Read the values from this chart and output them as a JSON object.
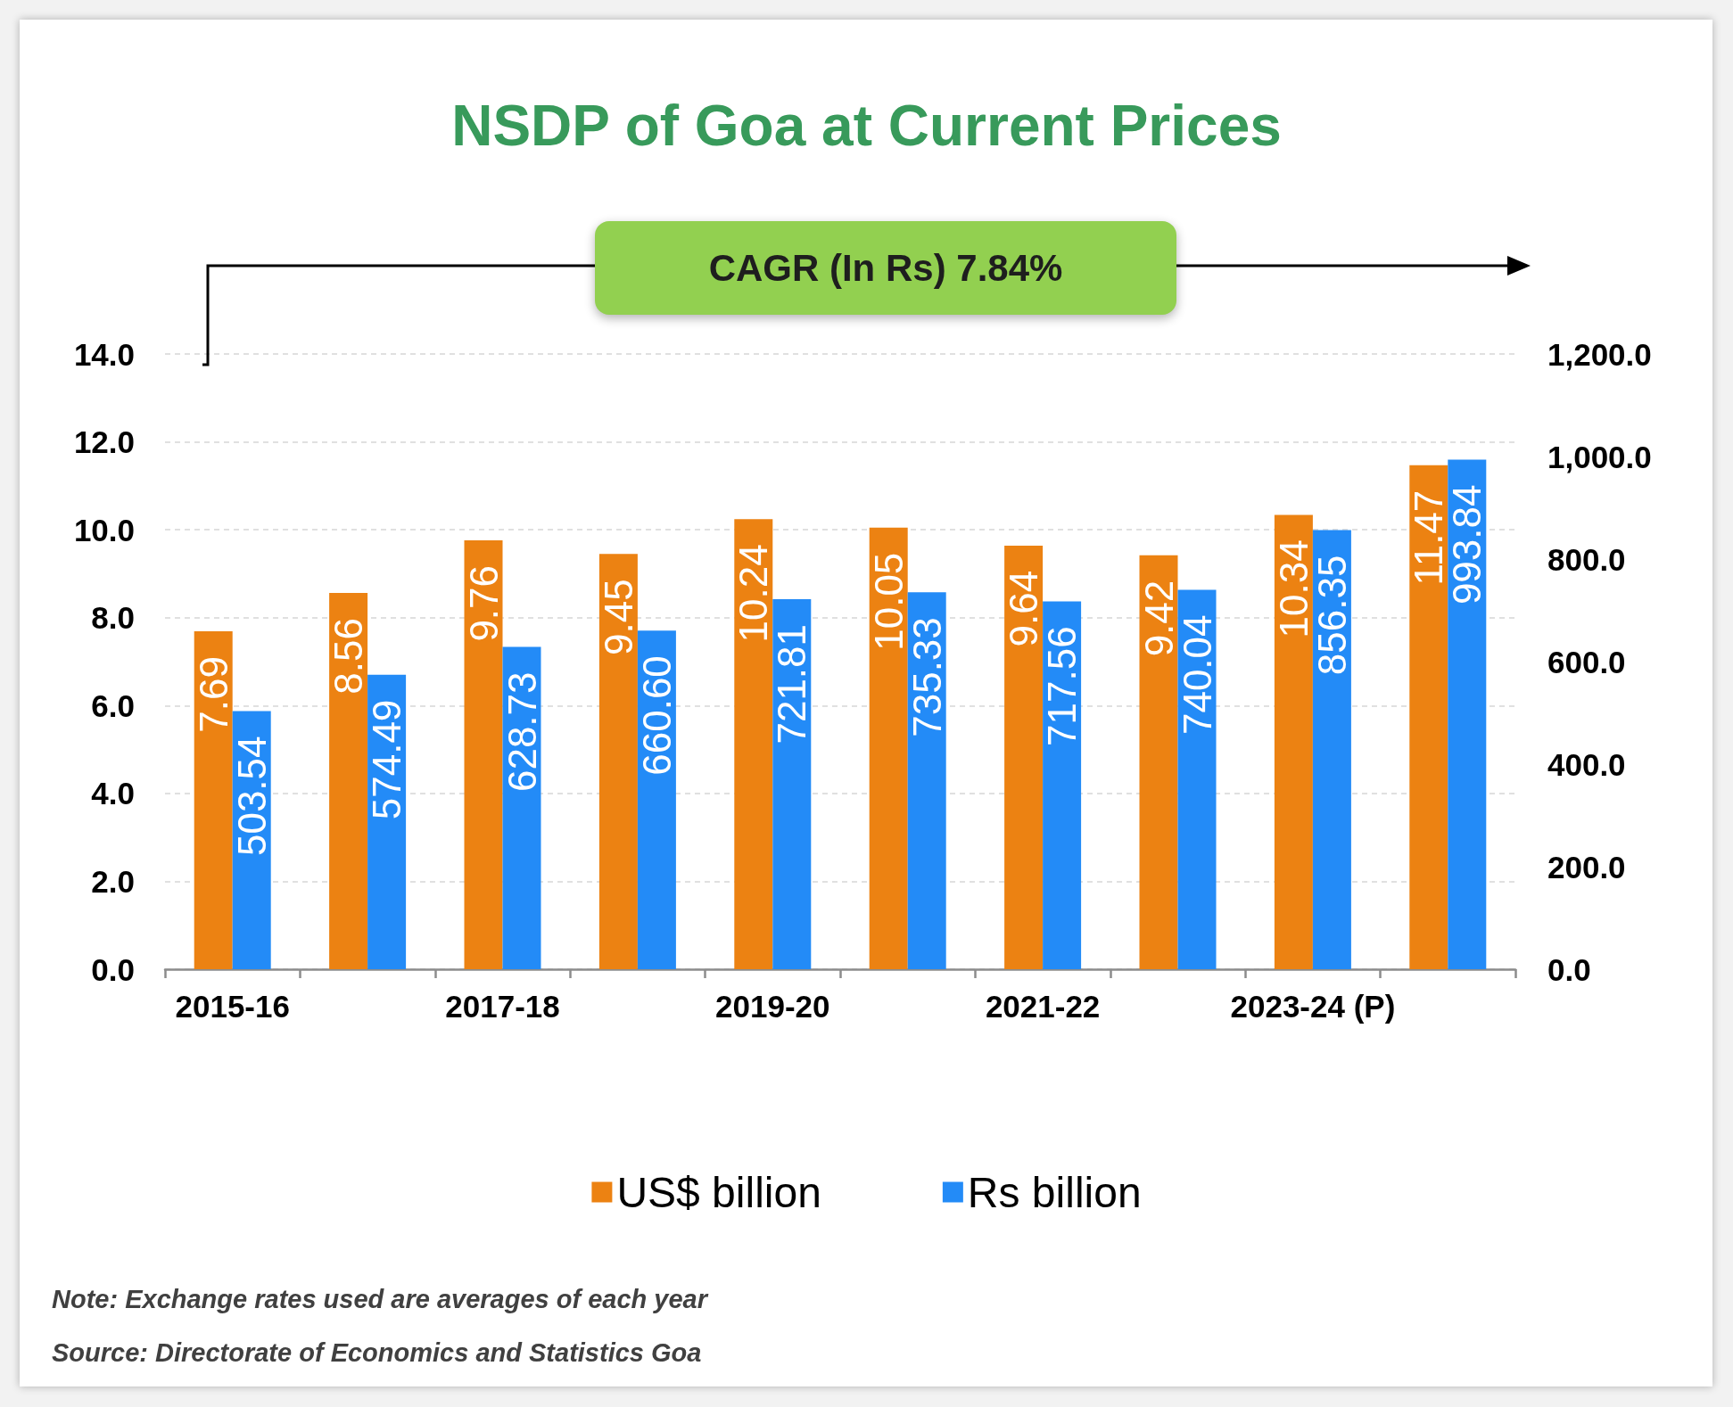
{
  "chart_data": {
    "type": "bar",
    "title": "NSDP of Goa at Current Prices",
    "categories": [
      "2015-16",
      null,
      "2017-18",
      null,
      "2019-20",
      null,
      "2021-22",
      null,
      "2023-24 (P)",
      null
    ],
    "series": [
      {
        "name": "US$ billion",
        "color": "#ec8212",
        "values": [
          7.69,
          8.56,
          9.76,
          9.45,
          10.24,
          10.05,
          9.64,
          9.42,
          10.34,
          11.47
        ],
        "value_labels": [
          "7.69",
          "8.56",
          "9.76",
          "9.45",
          "10.24",
          "10.05",
          "9.64",
          "9.42",
          "10.34",
          "11.47"
        ]
      },
      {
        "name": "Rs billion",
        "color": "#238bf7",
        "axis": "y2",
        "values": [
          503.54,
          574.49,
          628.73,
          660.6,
          721.81,
          735.33,
          717.56,
          740.04,
          856.35,
          993.84
        ],
        "value_labels": [
          "503.54",
          "574.49",
          "628.73",
          "660.60",
          "721.81",
          "735.33",
          "717.56",
          "740.04",
          "856.35",
          "993.84"
        ]
      }
    ],
    "ylim": [
      0,
      14
    ],
    "yticks": [
      {
        "value": 0,
        "label": "0.0"
      },
      {
        "value": 2,
        "label": "2.0"
      },
      {
        "value": 4,
        "label": "4.0"
      },
      {
        "value": 6,
        "label": "6.0"
      },
      {
        "value": 8,
        "label": "8.0"
      },
      {
        "value": 10,
        "label": "10.0"
      },
      {
        "value": 12,
        "label": "12.0"
      },
      {
        "value": 14,
        "label": "14.0"
      }
    ],
    "y2lim": [
      0,
      1200
    ],
    "y2ticks": [
      {
        "value": 0,
        "label": "0.0"
      },
      {
        "value": 200,
        "label": "200.0"
      },
      {
        "value": 400,
        "label": "400.0"
      },
      {
        "value": 600,
        "label": "600.0"
      },
      {
        "value": 800,
        "label": "800.0"
      },
      {
        "value": 1000,
        "label": "1,000.0"
      },
      {
        "value": 1200,
        "label": "1,200.0"
      }
    ],
    "grid": "y",
    "legend": "bottom",
    "annotations": [
      "CAGR (In Rs) 7.84%",
      "Note: Exchange rates used are averages of each year",
      "Source: Directorate of Economics and Statistics Goa"
    ]
  }
}
